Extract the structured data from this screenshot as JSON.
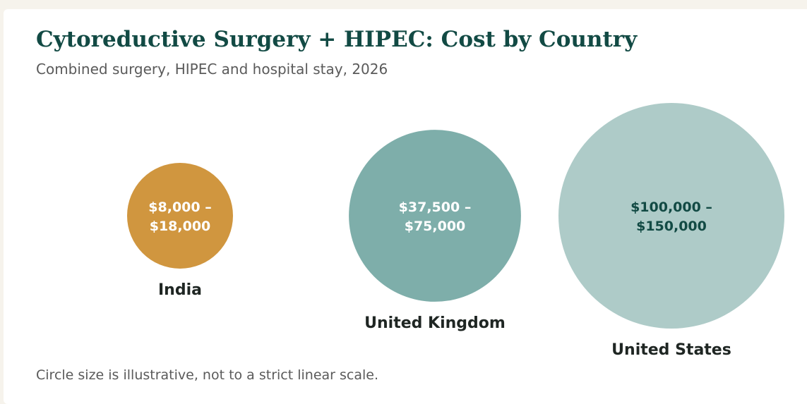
{
  "title": "Cytoreductive Surgery + HIPEC: Cost by Country",
  "subtitle": "Combined surgery, HIPEC and hospital stay, 2026",
  "footnote": "Circle size is illustrative, not to a strict linear scale.",
  "chart_data": {
    "type": "bubble",
    "title": "Cytoreductive Surgery + HIPEC: Cost by Country",
    "subtitle": "Combined surgery, HIPEC and hospital stay, 2026",
    "categories": [
      "India",
      "United Kingdom",
      "United States"
    ],
    "series": [
      {
        "values": [
          {
            "country": "India",
            "min": 8000,
            "max": 18000,
            "label_line1": "$8,000 –",
            "label_line2": "$18,000",
            "color": "#d0963f",
            "text_color": "#ffffff"
          },
          {
            "country": "United Kingdom",
            "min": 37500,
            "max": 75000,
            "label_line1": "$37,500 –",
            "label_line2": "$75,000",
            "color": "#7eaeaa",
            "text_color": "#ffffff"
          },
          {
            "country": "United States",
            "min": 100000,
            "max": 150000,
            "label_line1": "$100,000 –",
            "label_line2": "$150,000",
            "color": "#aecbc8",
            "text_color": "#124a44"
          }
        ]
      }
    ],
    "currency": "USD",
    "legend": "none",
    "grid": false
  }
}
